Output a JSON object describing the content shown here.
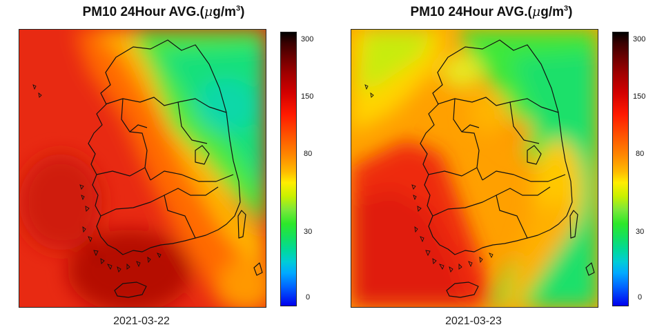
{
  "panels": [
    {
      "title_prefix": "PM10 24Hour AVG.(",
      "title_mu": "μ",
      "title_unit": "g/m",
      "title_sup": "3",
      "title_suffix": ")",
      "date": "2021-03-22"
    },
    {
      "title_prefix": "PM10 24Hour AVG.(",
      "title_mu": "μ",
      "title_unit": "g/m",
      "title_sup": "3",
      "title_suffix": ")",
      "date": "2021-03-23"
    }
  ],
  "colorbar": {
    "ticks": [
      "300",
      "150",
      "80",
      "30",
      "0"
    ],
    "colors": [
      "#000000",
      "#a00000",
      "#ff1a00",
      "#ff8800",
      "#ffee00",
      "#2de82a",
      "#00ccd8",
      "#0000ee"
    ]
  }
}
